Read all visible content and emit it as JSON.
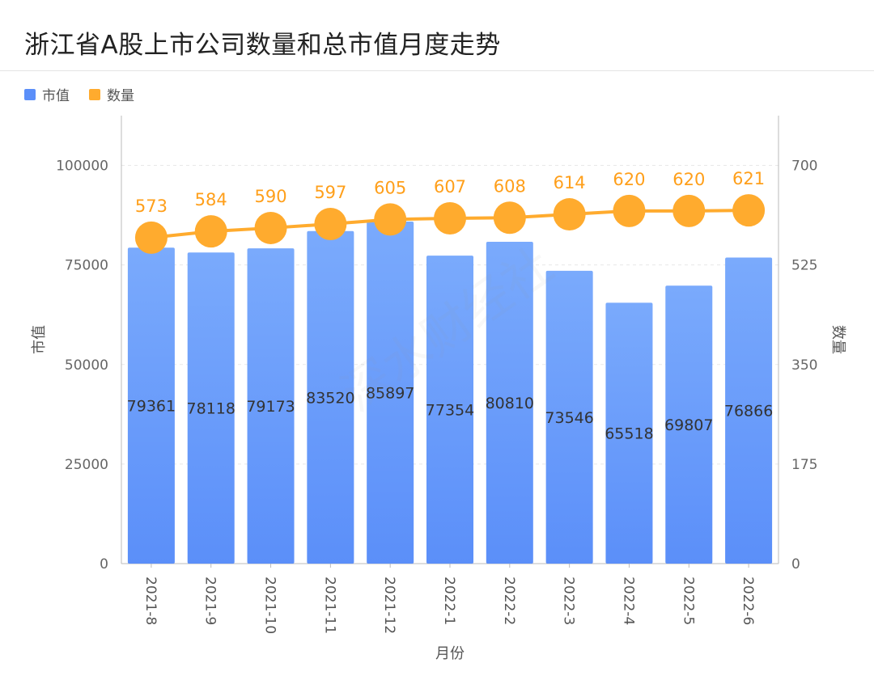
{
  "title": "浙江省A股上市公司数量和总市值月度走势",
  "watermark": "深水财经社",
  "legend": [
    {
      "label": "市值",
      "color": "#5b8ff9"
    },
    {
      "label": "数量",
      "color": "#ffab2e"
    }
  ],
  "chart_data": {
    "type": "bar",
    "categories": [
      "2021-8",
      "2021-9",
      "2021-10",
      "2021-11",
      "2021-12",
      "2022-1",
      "2022-2",
      "2022-3",
      "2022-4",
      "2022-5",
      "2022-6"
    ],
    "series": [
      {
        "name": "市值",
        "type": "bar",
        "axis": "left",
        "values": [
          79361,
          78118,
          79173,
          83520,
          85897,
          77354,
          80810,
          73546,
          65518,
          69807,
          76866
        ]
      },
      {
        "name": "数量",
        "type": "line",
        "axis": "right",
        "values": [
          573,
          584,
          590,
          597,
          605,
          607,
          608,
          614,
          620,
          620,
          621
        ]
      }
    ],
    "xlabel": "月份",
    "ylabel": "市值",
    "y2label": "数量",
    "ylim": [
      0,
      112500
    ],
    "y2lim": [
      0,
      787.5
    ],
    "yticks": [
      "0",
      "25000",
      "50000",
      "75000",
      "100000"
    ],
    "y2ticks": [
      "0",
      "175",
      "350",
      "525",
      "700"
    ],
    "grid": true,
    "legend_position": "top-left"
  }
}
